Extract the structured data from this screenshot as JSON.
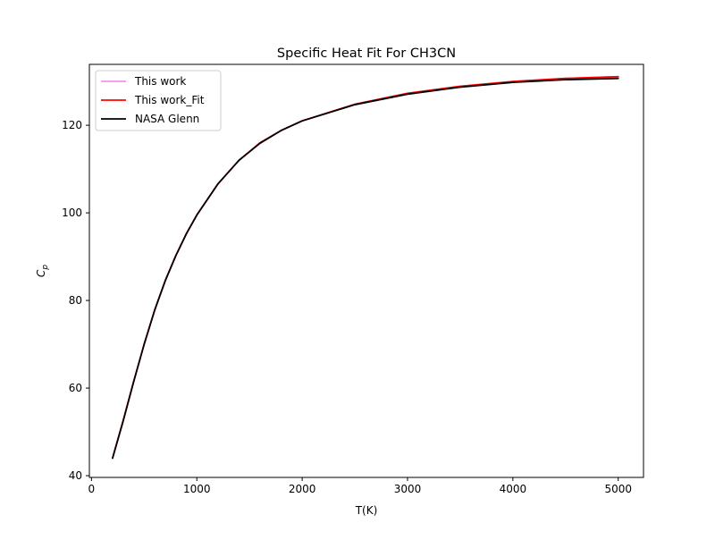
{
  "chart_data": {
    "type": "line",
    "title": "Specific Heat Fit For CH3CN",
    "xlabel": "T(K)",
    "ylabel": "C_p",
    "xlim": [
      -20,
      5240
    ],
    "ylim": [
      39.6,
      133.9
    ],
    "xticks": [
      0,
      1000,
      2000,
      3000,
      4000,
      5000
    ],
    "yticks": [
      40,
      60,
      80,
      100,
      120
    ],
    "legend_position": "top-left",
    "grid": false,
    "series": [
      {
        "name": "This work",
        "color": "#ee82ee",
        "x": [
          200,
          300,
          400,
          500,
          600,
          700,
          800,
          900,
          1000,
          1200,
          1400,
          1600,
          1800,
          2000,
          2500,
          3000,
          3500,
          4000,
          4500,
          5000
        ],
        "y": [
          44.0,
          52.5,
          61.5,
          70.0,
          77.8,
          84.5,
          90.2,
          95.2,
          99.5,
          106.6,
          112.0,
          116.0,
          118.8,
          121.0,
          124.8,
          127.3,
          128.9,
          130.0,
          130.7,
          131.1
        ]
      },
      {
        "name": "This work_Fit",
        "color": "#ff0000",
        "x": [
          200,
          300,
          400,
          500,
          600,
          700,
          800,
          900,
          1000,
          1200,
          1400,
          1600,
          1800,
          2000,
          2500,
          3000,
          3500,
          4000,
          4500,
          5000
        ],
        "y": [
          44.0,
          52.5,
          61.5,
          70.0,
          77.8,
          84.5,
          90.2,
          95.2,
          99.5,
          106.6,
          112.0,
          116.0,
          118.8,
          121.0,
          124.8,
          127.3,
          128.9,
          130.0,
          130.7,
          131.1
        ]
      },
      {
        "name": "NASA Glenn",
        "color": "#000000",
        "x": [
          200,
          300,
          400,
          500,
          600,
          700,
          800,
          900,
          1000,
          1200,
          1400,
          1600,
          1800,
          2000,
          2500,
          3000,
          3500,
          4000,
          4500,
          5000
        ],
        "y": [
          44.0,
          52.4,
          61.4,
          70.0,
          77.8,
          84.5,
          90.2,
          95.2,
          99.5,
          106.6,
          112.0,
          115.9,
          118.8,
          121.0,
          124.7,
          127.1,
          128.7,
          129.8,
          130.4,
          130.7
        ]
      }
    ]
  }
}
